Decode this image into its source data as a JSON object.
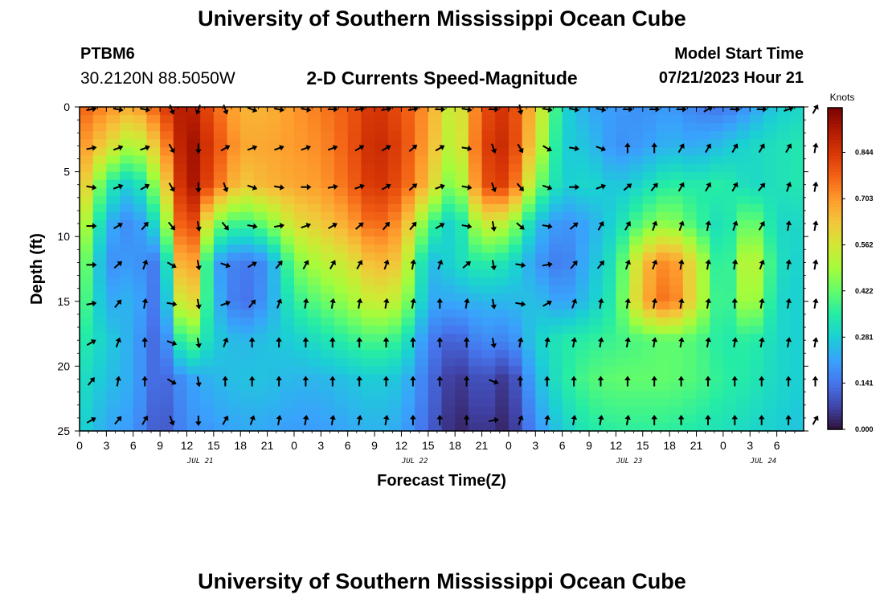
{
  "page": {
    "title": "University of Southern Mississippi Ocean Cube",
    "footer_title": "University of Southern Mississippi Ocean Cube",
    "station": "PTBM6",
    "coordinates": "30.2120N  88.5050W",
    "subtitle": "2-D Currents Speed-Magnitude",
    "model_start_label": "Model Start Time",
    "model_start_value": "07/21/2023 Hour 21"
  },
  "chart_data": {
    "type": "heatmap",
    "title": "2-D Currents Speed-Magnitude",
    "xlabel": "Forecast Time(Z)",
    "ylabel": "Depth (ft)",
    "ylim": [
      0,
      25
    ],
    "y_ticks": [
      0,
      5,
      10,
      15,
      20,
      25
    ],
    "x_tick_labels": [
      "0",
      "3",
      "6",
      "9",
      "12",
      "15",
      "18",
      "21",
      "0",
      "3",
      "6",
      "9",
      "12",
      "15",
      "18",
      "21",
      "0",
      "3",
      "6",
      "9",
      "12",
      "15",
      "18",
      "21",
      "0",
      "3",
      "6"
    ],
    "date_labels": [
      {
        "label": "JUL 21",
        "tick_index": 4.5
      },
      {
        "label": "JUL 22",
        "tick_index": 12.5
      },
      {
        "label": "JUL 23",
        "tick_index": 20.5
      },
      {
        "label": "JUL 24",
        "tick_index": 25.5
      }
    ],
    "colorbar": {
      "label": "Knots",
      "ticks": [
        0.0,
        0.141,
        0.281,
        0.422,
        0.562,
        0.703,
        0.844
      ],
      "tick_labels": [
        "0.000",
        "0.141",
        "0.281",
        "0.422",
        "0.562",
        "0.703",
        "0.844"
      ],
      "range": [
        0,
        0.98
      ],
      "colormap": [
        "#30123b",
        "#4145ab",
        "#4675ed",
        "#39a2fc",
        "#1bcfd4",
        "#24eca6",
        "#61fc6c",
        "#a4fc3b",
        "#d1e834",
        "#f3c63a",
        "#fe9b2d",
        "#f36315",
        "#d93806",
        "#b11901",
        "#7a0403"
      ]
    },
    "speed_grid": {
      "hours_step": 1.5,
      "depth_step": 0.625,
      "hour_range": [
        0,
        81
      ],
      "depth_range": [
        0,
        25
      ],
      "hour_knots": [
        0,
        3,
        6,
        9,
        12,
        15,
        18,
        21,
        24,
        27,
        30,
        33,
        36,
        39,
        42,
        45,
        48,
        51,
        54,
        57,
        60,
        63,
        66,
        69,
        72,
        75,
        78,
        81
      ],
      "depth_knots": [
        0,
        3,
        6,
        9,
        12,
        15,
        18,
        21,
        25
      ],
      "values": [
        [
          0.78,
          0.72,
          0.66,
          0.8,
          0.93,
          0.78,
          0.66,
          0.66,
          0.7,
          0.74,
          0.78,
          0.86,
          0.8,
          0.7,
          0.5,
          0.8,
          0.86,
          0.62,
          0.3,
          0.22,
          0.2,
          0.18,
          0.2,
          0.16,
          0.14,
          0.2,
          0.28,
          0.3
        ],
        [
          0.72,
          0.6,
          0.48,
          0.66,
          0.96,
          0.82,
          0.68,
          0.68,
          0.7,
          0.72,
          0.78,
          0.88,
          0.82,
          0.68,
          0.48,
          0.82,
          0.88,
          0.58,
          0.28,
          0.26,
          0.18,
          0.2,
          0.24,
          0.22,
          0.26,
          0.3,
          0.32,
          0.34
        ],
        [
          0.68,
          0.36,
          0.26,
          0.52,
          0.96,
          0.78,
          0.62,
          0.66,
          0.68,
          0.7,
          0.76,
          0.86,
          0.8,
          0.64,
          0.4,
          0.8,
          0.84,
          0.46,
          0.28,
          0.3,
          0.26,
          0.3,
          0.36,
          0.34,
          0.36,
          0.3,
          0.32,
          0.34
        ],
        [
          0.58,
          0.24,
          0.16,
          0.34,
          0.92,
          0.46,
          0.36,
          0.44,
          0.58,
          0.62,
          0.68,
          0.78,
          0.7,
          0.4,
          0.26,
          0.56,
          0.52,
          0.26,
          0.18,
          0.22,
          0.3,
          0.42,
          0.48,
          0.38,
          0.3,
          0.46,
          0.3,
          0.3
        ],
        [
          0.5,
          0.18,
          0.2,
          0.14,
          0.84,
          0.22,
          0.14,
          0.18,
          0.44,
          0.52,
          0.56,
          0.66,
          0.62,
          0.24,
          0.3,
          0.36,
          0.32,
          0.2,
          0.14,
          0.24,
          0.34,
          0.64,
          0.74,
          0.56,
          0.3,
          0.58,
          0.32,
          0.28
        ],
        [
          0.44,
          0.22,
          0.24,
          0.12,
          0.7,
          0.26,
          0.12,
          0.2,
          0.36,
          0.42,
          0.48,
          0.56,
          0.52,
          0.22,
          0.22,
          0.24,
          0.24,
          0.26,
          0.2,
          0.26,
          0.36,
          0.66,
          0.78,
          0.56,
          0.32,
          0.54,
          0.3,
          0.28
        ],
        [
          0.36,
          0.28,
          0.22,
          0.1,
          0.44,
          0.28,
          0.24,
          0.26,
          0.28,
          0.32,
          0.36,
          0.4,
          0.36,
          0.16,
          0.1,
          0.18,
          0.16,
          0.28,
          0.34,
          0.36,
          0.38,
          0.4,
          0.42,
          0.4,
          0.34,
          0.36,
          0.3,
          0.28
        ],
        [
          0.32,
          0.26,
          0.22,
          0.1,
          0.2,
          0.24,
          0.26,
          0.26,
          0.24,
          0.24,
          0.26,
          0.28,
          0.26,
          0.14,
          0.04,
          0.1,
          0.04,
          0.24,
          0.34,
          0.4,
          0.42,
          0.42,
          0.42,
          0.4,
          0.36,
          0.34,
          0.3,
          0.28
        ],
        [
          0.3,
          0.22,
          0.2,
          0.08,
          0.18,
          0.2,
          0.22,
          0.22,
          0.2,
          0.2,
          0.22,
          0.24,
          0.22,
          0.12,
          0.02,
          0.06,
          0.02,
          0.18,
          0.28,
          0.34,
          0.36,
          0.36,
          0.36,
          0.34,
          0.32,
          0.3,
          0.28,
          0.26
        ]
      ]
    },
    "vectors": {
      "depths": [
        0,
        3,
        6,
        9,
        12,
        15,
        18,
        21,
        24
      ],
      "hours": [
        0,
        3,
        6,
        9,
        12,
        15,
        18,
        21,
        24,
        27,
        30,
        33,
        36,
        39,
        42,
        45,
        48,
        51,
        54,
        57,
        60,
        63,
        66,
        69,
        72,
        75,
        78,
        81
      ],
      "directions_deg": [
        [
          80,
          100,
          100,
          160,
          200,
          160,
          110,
          100,
          100,
          90,
          80,
          80,
          80,
          90,
          100,
          90,
          170,
          100,
          100,
          100,
          90,
          90,
          90,
          60,
          90,
          90,
          70,
          30
        ],
        [
          80,
          70,
          70,
          150,
          180,
          60,
          70,
          70,
          70,
          70,
          60,
          60,
          50,
          60,
          100,
          160,
          150,
          120,
          100,
          110,
          0,
          0,
          30,
          30,
          30,
          30,
          30,
          10
        ],
        [
          100,
          70,
          60,
          150,
          180,
          160,
          110,
          100,
          90,
          80,
          70,
          60,
          50,
          70,
          100,
          160,
          140,
          110,
          90,
          70,
          50,
          40,
          30,
          30,
          30,
          40,
          20,
          10
        ],
        [
          90,
          60,
          40,
          140,
          170,
          140,
          100,
          80,
          70,
          60,
          50,
          40,
          40,
          60,
          100,
          170,
          130,
          100,
          50,
          30,
          30,
          20,
          20,
          10,
          20,
          30,
          10,
          10
        ],
        [
          90,
          50,
          20,
          120,
          170,
          110,
          60,
          40,
          30,
          30,
          30,
          20,
          10,
          20,
          50,
          170,
          100,
          80,
          40,
          40,
          20,
          20,
          10,
          10,
          10,
          20,
          10,
          10
        ],
        [
          80,
          40,
          10,
          100,
          170,
          70,
          40,
          20,
          10,
          10,
          10,
          10,
          10,
          0,
          10,
          170,
          100,
          60,
          20,
          10,
          10,
          10,
          10,
          10,
          0,
          10,
          10,
          10
        ],
        [
          60,
          20,
          0,
          110,
          170,
          20,
          0,
          0,
          0,
          0,
          0,
          0,
          0,
          0,
          0,
          170,
          10,
          10,
          10,
          10,
          10,
          10,
          10,
          10,
          10,
          10,
          10,
          10
        ],
        [
          40,
          10,
          0,
          120,
          170,
          0,
          0,
          0,
          0,
          0,
          0,
          0,
          0,
          0,
          0,
          110,
          0,
          0,
          0,
          0,
          0,
          0,
          0,
          0,
          0,
          0,
          0,
          0
        ],
        [
          60,
          40,
          30,
          160,
          180,
          30,
          20,
          10,
          10,
          10,
          10,
          10,
          0,
          0,
          0,
          80,
          20,
          10,
          10,
          10,
          10,
          0,
          0,
          0,
          0,
          0,
          0,
          30
        ]
      ]
    }
  }
}
